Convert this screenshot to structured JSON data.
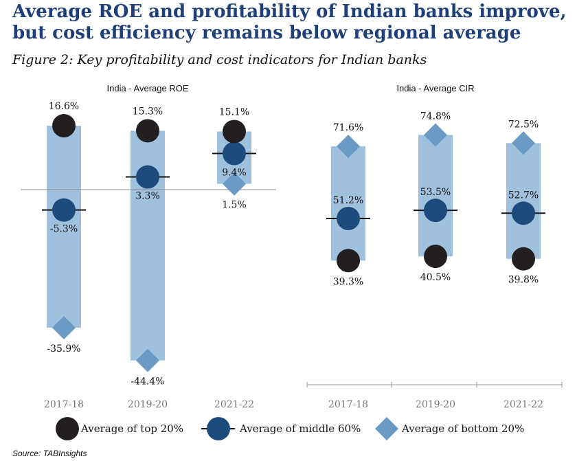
{
  "headline": "Average ROE and profitability of Indian banks improve, but cost efficiency remains below regional average",
  "figure_title": "Figure 2: Key profitability and cost indicators for Indian banks",
  "source": "Source: TABInsights",
  "colors": {
    "range_bar": "#9fc1de",
    "top20": "#231f20",
    "middle60": "#1d4c7c",
    "bottom20": "#6b9ac4",
    "headline": "#1f3f78"
  },
  "legend": {
    "top": "Average of top 20%",
    "middle": "Average of middle 60%",
    "bottom": "Average of bottom 20%"
  },
  "chart_data": [
    {
      "type": "range-dot",
      "title": "India - Average ROE",
      "categories": [
        "2017-18",
        "2019-20",
        "2021-22"
      ],
      "series": [
        {
          "name": "Average of top 20%",
          "values": [
            16.6,
            15.3,
            15.1
          ],
          "labels": [
            "16.6%",
            "15.3%",
            "15.1%"
          ]
        },
        {
          "name": "Average of middle 60%",
          "values": [
            -5.3,
            3.3,
            9.4
          ],
          "labels": [
            "-5.3%",
            "3.3%",
            "9.4%"
          ]
        },
        {
          "name": "Average of bottom 20%",
          "values": [
            -35.9,
            -44.4,
            1.5
          ],
          "labels": [
            "-35.9%",
            "-44.4%",
            "1.5%"
          ]
        }
      ]
    },
    {
      "type": "range-dot",
      "title": "India - Average CIR",
      "categories": [
        "2017-18",
        "2019-20",
        "2021-22"
      ],
      "series": [
        {
          "name": "Average of top 20%",
          "values": [
            39.3,
            40.5,
            39.8
          ],
          "labels": [
            "39.3%",
            "40.5%",
            "39.8%"
          ]
        },
        {
          "name": "Average of middle 60%",
          "values": [
            51.2,
            53.5,
            52.7
          ],
          "labels": [
            "51.2%",
            "53.5%",
            "52.7%"
          ]
        },
        {
          "name": "Average of bottom 20%",
          "values": [
            71.6,
            74.8,
            72.5
          ],
          "labels": [
            "71.6%",
            "74.8%",
            "72.5%"
          ]
        }
      ]
    }
  ]
}
